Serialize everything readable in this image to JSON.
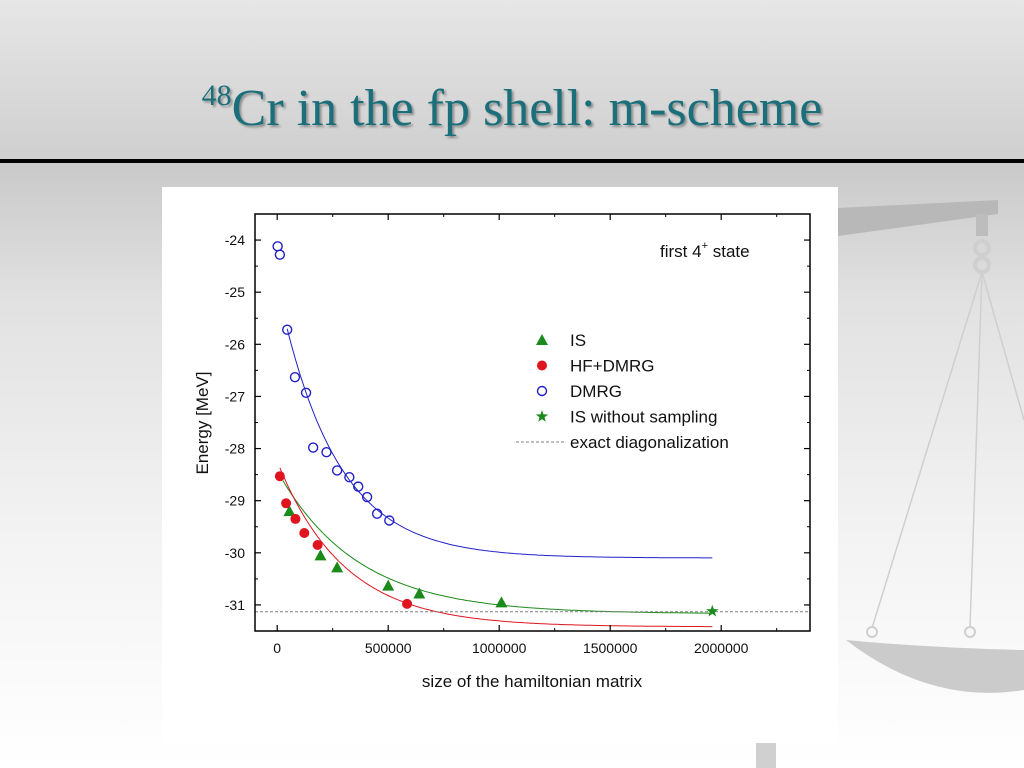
{
  "slide": {
    "title_sup": "48",
    "title_main": "Cr in the fp shell: m-scheme"
  },
  "colors": {
    "title": "#1a6f7a",
    "is": "#1a8a1a",
    "hf_dmrg": "#e0141e",
    "dmrg": "#2020c8",
    "exact": "#808080"
  },
  "chart_data": {
    "type": "scatter",
    "xlabel": "size of the hamiltonian matrix",
    "ylabel": "Energy [MeV]",
    "xlim": [
      -100000,
      2400000
    ],
    "ylim": [
      -31.5,
      -23.5
    ],
    "x_ticks": [
      0,
      500000,
      1000000,
      1500000,
      2000000
    ],
    "x_tick_labels": [
      "0",
      "500000",
      "1000000",
      "1500000",
      "2000000"
    ],
    "y_ticks": [
      -31,
      -30,
      -29,
      -28,
      -27,
      -26,
      -25,
      -24
    ],
    "y_tick_labels": [
      "-31",
      "-30",
      "-29",
      "-28",
      "-27",
      "-26",
      "-25",
      "-24"
    ],
    "annotation_main": "first 4",
    "annotation_sup": "+",
    "annotation_tail": " state",
    "legend_position": "right-center",
    "exact_value": -31.13,
    "series": [
      {
        "name": "IS",
        "marker": "triangle",
        "color": "#1a8a1a",
        "x": [
          55000,
          195000,
          270000,
          500000,
          640000,
          1010000
        ],
        "y": [
          -29.2,
          -30.05,
          -30.28,
          -30.63,
          -30.78,
          -30.95
        ]
      },
      {
        "name": "HF+DMRG",
        "marker": "filled-circle",
        "color": "#e0141e",
        "x": [
          12000,
          40000,
          82000,
          122000,
          182000,
          585000
        ],
        "y": [
          -28.53,
          -29.05,
          -29.35,
          -29.62,
          -29.85,
          -30.98
        ]
      },
      {
        "name": "DMRG",
        "marker": "open-circle",
        "color": "#2020c8",
        "x": [
          2000,
          12000,
          45000,
          80000,
          130000,
          162000,
          222000,
          270000,
          325000,
          365000,
          405000,
          450000,
          505000
        ],
        "y": [
          -24.12,
          -24.28,
          -25.72,
          -26.63,
          -26.93,
          -27.98,
          -28.07,
          -28.42,
          -28.55,
          -28.73,
          -28.93,
          -29.25,
          -29.38
        ]
      },
      {
        "name": "IS without sampling",
        "marker": "star",
        "color": "#1a8a1a",
        "x": [
          1960000
        ],
        "y": [
          -31.12
        ]
      },
      {
        "name": "exact diagonalization",
        "marker": "dashed-line",
        "color": "#808080",
        "x": [],
        "y": []
      }
    ],
    "fits": [
      {
        "series": "DMRG",
        "color": "#2020c8",
        "x_range": [
          45000,
          1960000
        ],
        "asymptote": -30.1,
        "amplitude": 4.4,
        "decay": 260000
      },
      {
        "series": "IS",
        "color": "#1a8a1a",
        "x_range": [
          25000,
          1960000
        ],
        "asymptote": -31.17,
        "amplitude": 2.56,
        "decay": 360000
      },
      {
        "series": "HF+DMRG",
        "color": "#e0141e",
        "x_range": [
          12000,
          1960000
        ],
        "asymptote": -31.42,
        "amplitude": 3.05,
        "decay": 300000
      }
    ]
  }
}
